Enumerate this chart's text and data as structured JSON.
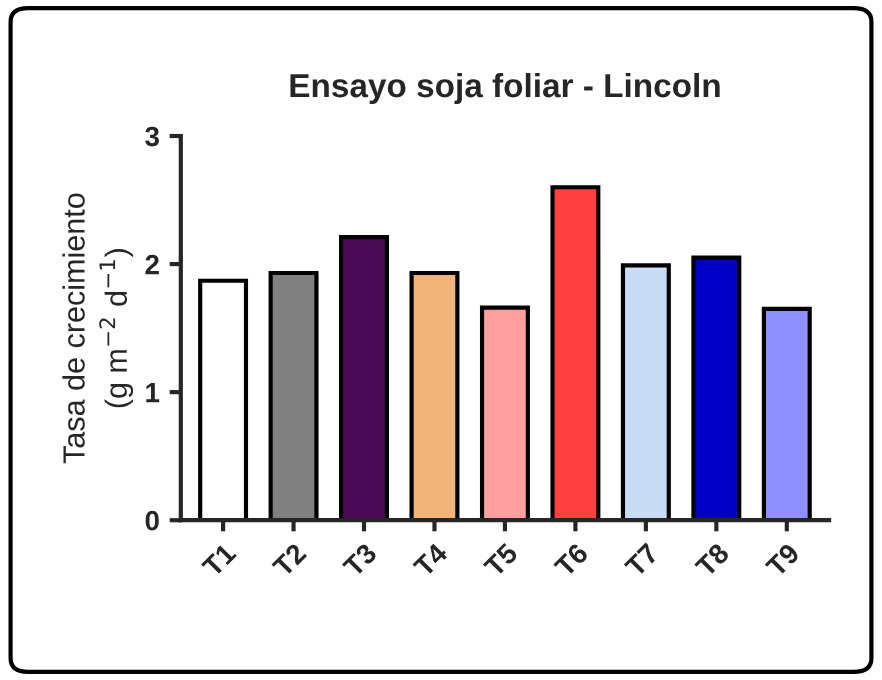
{
  "chart_data": {
    "type": "bar",
    "title": "Ensayo soja foliar - Lincoln",
    "ylabel": "Tasa de crecimiento\n(g m$^{−2}$ d$^{−1}$)",
    "categories": [
      "T1",
      "T2",
      "T3",
      "T4",
      "T5",
      "T6",
      "T7",
      "T8",
      "T9"
    ],
    "values": [
      1.87,
      1.93,
      2.21,
      1.93,
      1.66,
      2.6,
      1.99,
      2.05,
      1.65
    ],
    "colors": [
      "#ffffff",
      "#808080",
      "#4b0a55",
      "#f0b47a",
      "#ffa0a0",
      "#ff4040",
      "#c8dcf5",
      "#0000c8",
      "#9090ff"
    ],
    "ylim": [
      0,
      3
    ],
    "yticks": [
      0,
      1,
      2,
      3
    ],
    "grid": false,
    "legend": false
  }
}
